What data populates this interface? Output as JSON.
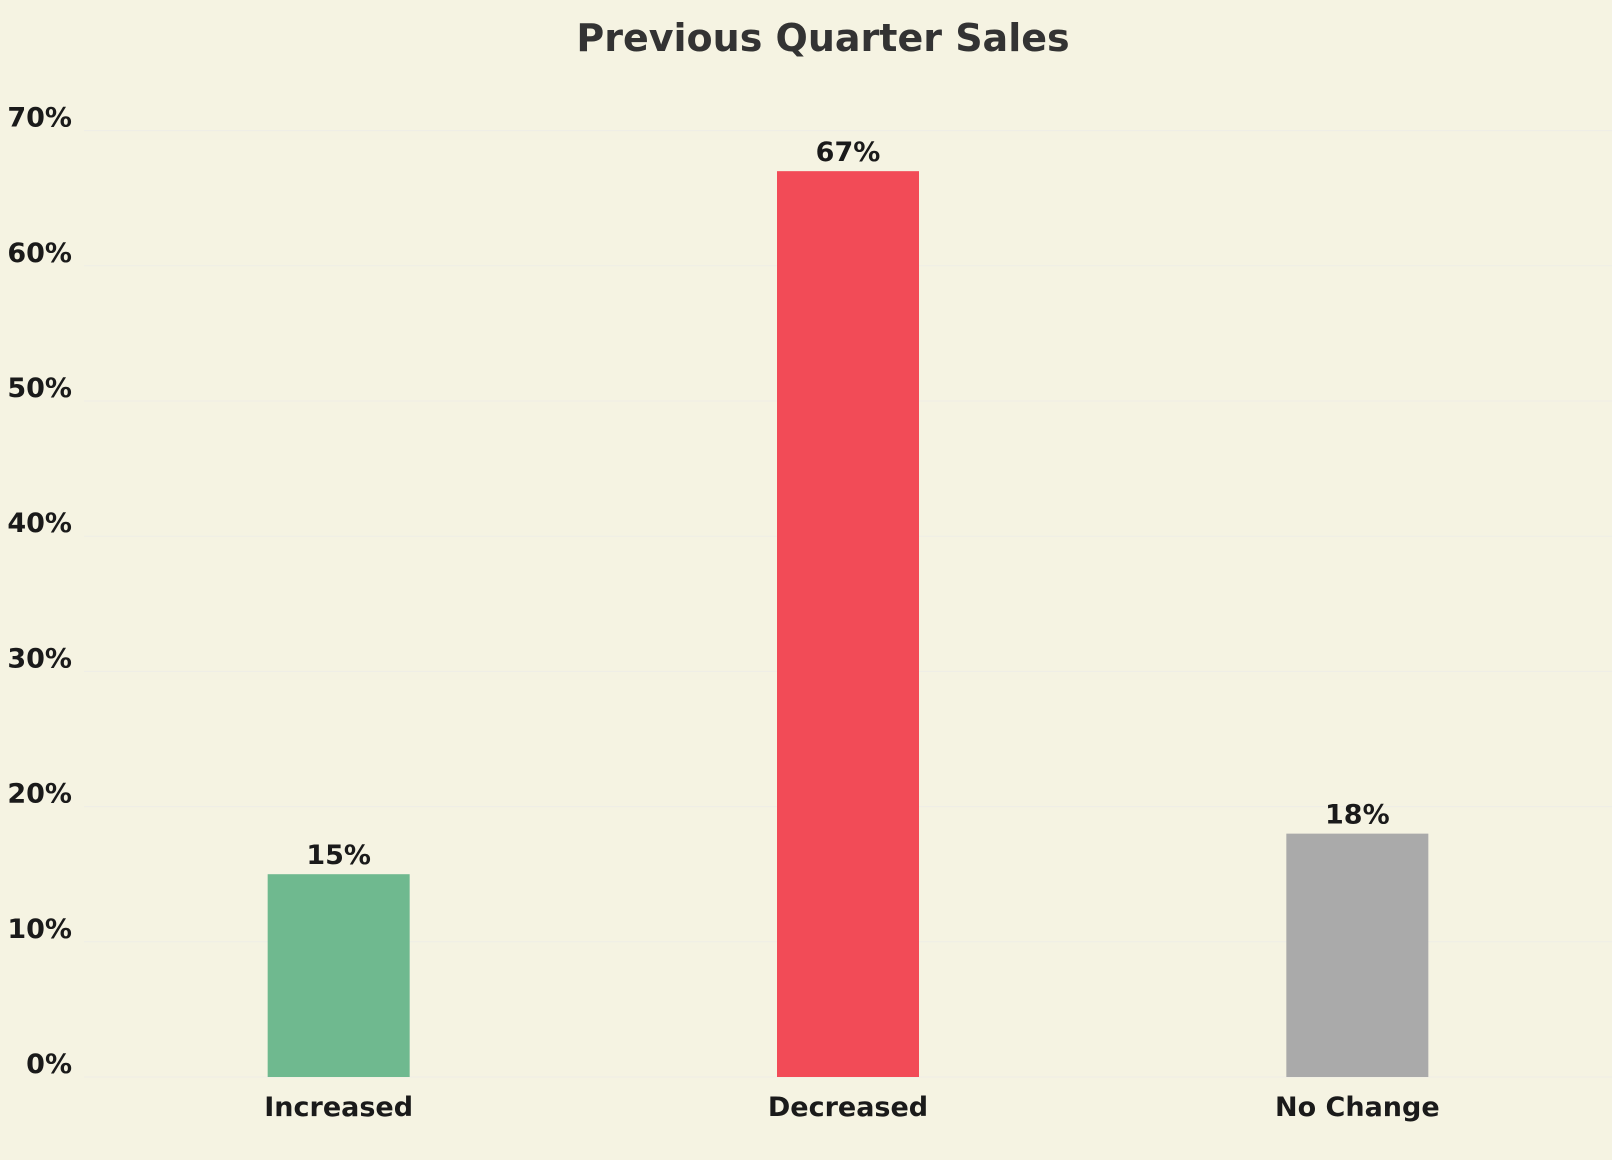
{
  "chart_data": {
    "type": "bar",
    "title": "Previous Quarter Sales",
    "categories": [
      "Increased",
      "Decreased",
      "No Change"
    ],
    "values": [
      15,
      67,
      18
    ],
    "value_labels": [
      "15%",
      "67%",
      "18%"
    ],
    "colors": [
      "#6fb98f",
      "#f24b57",
      "#aaaaaa"
    ],
    "ylim": [
      0,
      70
    ],
    "yticks": [
      {
        "value": 0,
        "label": "0%"
      },
      {
        "value": 10,
        "label": "10%"
      },
      {
        "value": 20,
        "label": "20%"
      },
      {
        "value": 30,
        "label": "30%"
      },
      {
        "value": 40,
        "label": "40%"
      },
      {
        "value": 50,
        "label": "50%"
      },
      {
        "value": 60,
        "label": "60%"
      },
      {
        "value": 70,
        "label": "70%"
      }
    ],
    "xlabel": "",
    "ylabel": "",
    "grid": true,
    "background": "#f5f3e2",
    "gridline_color": "#eeeee6",
    "label_color": "#1a1a1a"
  }
}
